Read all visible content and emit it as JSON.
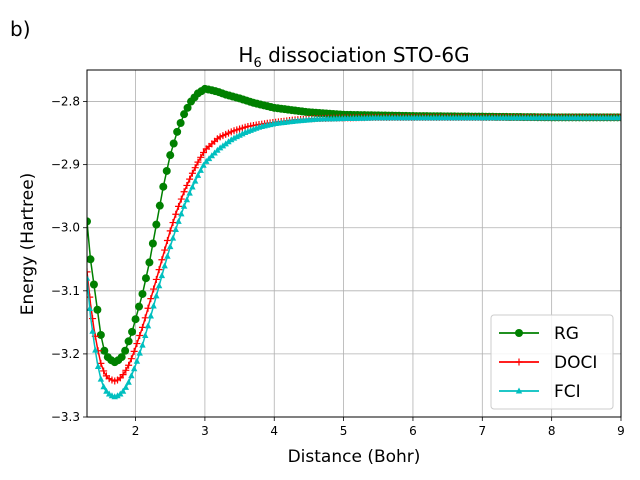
{
  "panel_label": "b)",
  "chart_data": {
    "type": "line",
    "title_main": "H",
    "title_sub": "6",
    "title_rest": " dissociation STO-6G",
    "xlabel": "Distance (Bohr)",
    "ylabel": "Energy (Hartree)",
    "xlim": [
      1.3,
      9.0
    ],
    "ylim": [
      -3.3,
      -2.75
    ],
    "x_ticks": [
      2,
      3,
      4,
      5,
      6,
      7,
      8,
      9
    ],
    "x_tick_labels": [
      "2",
      "3",
      "4",
      "5",
      "6",
      "7",
      "8",
      "9"
    ],
    "y_ticks": [
      -3.3,
      -3.2,
      -3.1,
      -3.0,
      -2.9,
      -2.8
    ],
    "y_tick_labels": [
      "−3.3",
      "−3.2",
      "−3.1",
      "−3.0",
      "−2.9",
      "−2.8"
    ],
    "grid": true,
    "legend_position": "lower-right",
    "series": [
      {
        "name": "RG",
        "color": "#008000",
        "marker": "circle",
        "x": [
          1.3,
          1.35,
          1.4,
          1.45,
          1.5,
          1.55,
          1.6,
          1.65,
          1.7,
          1.75,
          1.8,
          1.85,
          1.9,
          1.95,
          2.0,
          2.1,
          2.2,
          2.3,
          2.4,
          2.5,
          2.6,
          2.7,
          2.8,
          2.9,
          3.0,
          3.1,
          3.2,
          3.3,
          3.5,
          3.7,
          4.0,
          4.5,
          5.0,
          6.0,
          7.0,
          8.0,
          9.0
        ],
        "values": [
          -2.99,
          -3.05,
          -3.09,
          -3.13,
          -3.17,
          -3.195,
          -3.205,
          -3.21,
          -3.213,
          -3.21,
          -3.205,
          -3.195,
          -3.18,
          -3.165,
          -3.145,
          -3.105,
          -3.055,
          -2.995,
          -2.935,
          -2.885,
          -2.848,
          -2.82,
          -2.8,
          -2.787,
          -2.78,
          -2.782,
          -2.785,
          -2.789,
          -2.795,
          -2.802,
          -2.81,
          -2.817,
          -2.821,
          -2.823,
          -2.824,
          -2.825,
          -2.825
        ]
      },
      {
        "name": "DOCI",
        "color": "#ff0000",
        "marker": "plus",
        "x": [
          1.3,
          1.35,
          1.4,
          1.45,
          1.5,
          1.55,
          1.6,
          1.65,
          1.7,
          1.75,
          1.8,
          1.85,
          1.9,
          1.95,
          2.0,
          2.1,
          2.2,
          2.3,
          2.4,
          2.5,
          2.6,
          2.7,
          2.8,
          2.9,
          3.0,
          3.2,
          3.4,
          3.6,
          3.8,
          4.0,
          4.3,
          4.6,
          5.0,
          5.5,
          6.0,
          7.0,
          8.0,
          9.0
        ],
        "values": [
          -3.07,
          -3.12,
          -3.16,
          -3.19,
          -3.215,
          -3.23,
          -3.238,
          -3.241,
          -3.243,
          -3.241,
          -3.236,
          -3.228,
          -3.218,
          -3.205,
          -3.19,
          -3.158,
          -3.12,
          -3.082,
          -3.043,
          -3.005,
          -2.972,
          -2.943,
          -2.918,
          -2.896,
          -2.877,
          -2.857,
          -2.847,
          -2.84,
          -2.836,
          -2.833,
          -2.829,
          -2.827,
          -2.826,
          -2.825,
          -2.825,
          -2.825,
          -2.825,
          -2.825
        ]
      },
      {
        "name": "FCI",
        "color": "#00bfbf",
        "marker": "triangle",
        "x": [
          1.3,
          1.35,
          1.4,
          1.45,
          1.5,
          1.55,
          1.6,
          1.65,
          1.7,
          1.75,
          1.8,
          1.85,
          1.9,
          1.95,
          2.0,
          2.1,
          2.2,
          2.3,
          2.4,
          2.5,
          2.6,
          2.7,
          2.8,
          2.9,
          3.0,
          3.2,
          3.4,
          3.6,
          3.8,
          4.0,
          4.3,
          4.6,
          5.0,
          5.5,
          6.0,
          7.0,
          8.0,
          9.0
        ],
        "values": [
          -3.08,
          -3.14,
          -3.18,
          -3.215,
          -3.24,
          -3.255,
          -3.262,
          -3.266,
          -3.268,
          -3.266,
          -3.262,
          -3.255,
          -3.245,
          -3.232,
          -3.218,
          -3.186,
          -3.148,
          -3.108,
          -3.068,
          -3.03,
          -2.996,
          -2.966,
          -2.94,
          -2.917,
          -2.897,
          -2.875,
          -2.859,
          -2.848,
          -2.84,
          -2.835,
          -2.831,
          -2.828,
          -2.827,
          -2.826,
          -2.826,
          -2.826,
          -2.826,
          -2.826
        ]
      }
    ]
  }
}
